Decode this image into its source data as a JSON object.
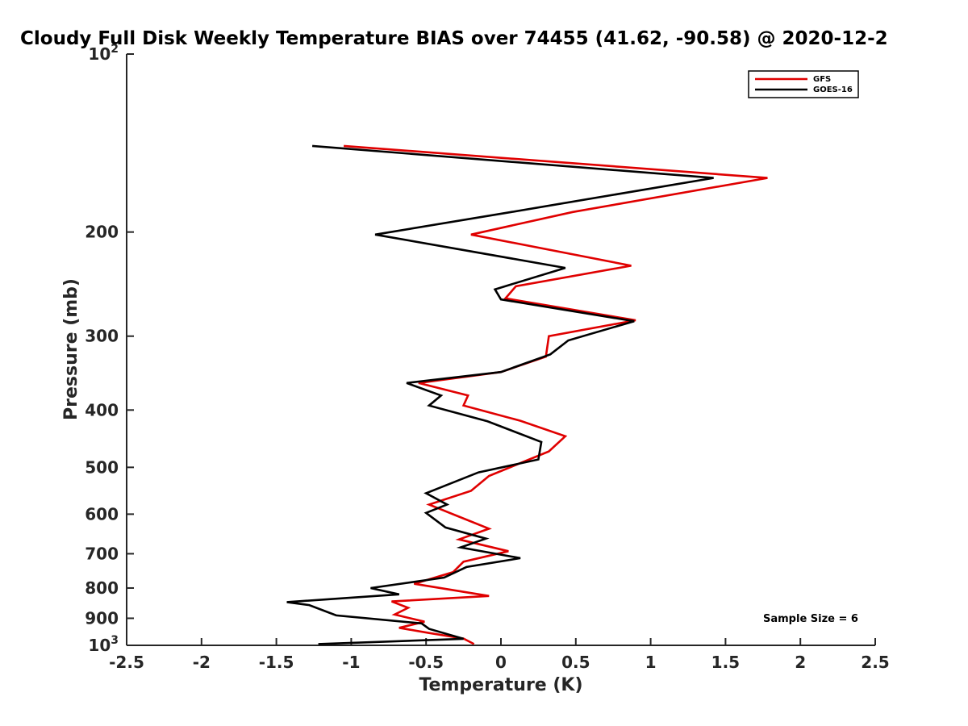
{
  "chart_data": {
    "type": "line",
    "title": "Cloudy Full Disk Weekly Temperature BIAS over 74455 (41.62, -90.58) @ 2020-12-2",
    "xlabel": "Temperature (K)",
    "ylabel": "Pressure (mb)",
    "xlim": [
      -2.5,
      2.5
    ],
    "ylim": [
      1000,
      100
    ],
    "yscale": "log",
    "y_reversed": true,
    "grid": false,
    "legend_position": "top-right",
    "x_ticks": [
      "-2.5",
      "-2",
      "-1.5",
      "-1",
      "-0.5",
      "0",
      "0.5",
      "1",
      "1.5",
      "2",
      "2.5"
    ],
    "x_tick_values": [
      -2.5,
      -2,
      -1.5,
      -1,
      -0.5,
      0,
      0.5,
      1,
      1.5,
      2,
      2.5
    ],
    "y_ticks": [
      {
        "value": 100,
        "base": "10",
        "exp": "2"
      },
      {
        "value": 200,
        "label": "200"
      },
      {
        "value": 300,
        "label": "300"
      },
      {
        "value": 400,
        "label": "400"
      },
      {
        "value": 500,
        "label": "500"
      },
      {
        "value": 600,
        "label": "600"
      },
      {
        "value": 700,
        "label": "700"
      },
      {
        "value": 800,
        "label": "800"
      },
      {
        "value": 900,
        "label": "900"
      },
      {
        "value": 1000,
        "base": "10",
        "exp": "3"
      }
    ],
    "annotation": "Sample Size = 6",
    "series": [
      {
        "name": "GFS",
        "color": "#e00000",
        "x": [
          -1.05,
          1.78,
          0.48,
          -0.2,
          0.87,
          0.1,
          0.03,
          0.9,
          0.32,
          0.3,
          -0.0,
          -0.55,
          -0.22,
          -0.25,
          0.13,
          0.43,
          0.32,
          -0.08,
          -0.2,
          -0.48,
          -0.3,
          -0.08,
          -0.28,
          0.05,
          -0.25,
          -0.32,
          -0.58,
          -0.08,
          -0.73,
          -0.62,
          -0.71,
          -0.51,
          -0.68,
          -0.48,
          -0.25,
          -0.18
        ],
        "y": [
          143,
          162,
          185,
          202,
          228,
          247,
          259,
          282,
          300,
          325,
          345,
          360,
          378,
          393,
          417,
          443,
          470,
          517,
          548,
          578,
          603,
          635,
          662,
          693,
          722,
          752,
          787,
          825,
          843,
          864,
          887,
          912,
          934,
          953,
          974,
          995
        ]
      },
      {
        "name": "GOES-16",
        "color": "#000000",
        "x": [
          -1.26,
          1.42,
          0.07,
          -0.84,
          0.43,
          -0.04,
          0.0,
          0.89,
          0.45,
          0.33,
          0.0,
          -0.63,
          -0.4,
          -0.48,
          -0.09,
          0.27,
          0.25,
          -0.15,
          -0.5,
          -0.36,
          -0.5,
          -0.37,
          -0.1,
          -0.27,
          0.13,
          -0.23,
          -0.38,
          -0.87,
          -0.68,
          -1.43,
          -1.28,
          -1.1,
          -0.53,
          -0.48,
          -0.25,
          -1.22
        ],
        "y": [
          143,
          162,
          185,
          202,
          230,
          250,
          260,
          283,
          305,
          322,
          345,
          360,
          378,
          393,
          418,
          453,
          485,
          510,
          553,
          578,
          597,
          632,
          660,
          683,
          712,
          737,
          768,
          800,
          820,
          845,
          855,
          890,
          918,
          938,
          975,
          995
        ]
      }
    ]
  }
}
